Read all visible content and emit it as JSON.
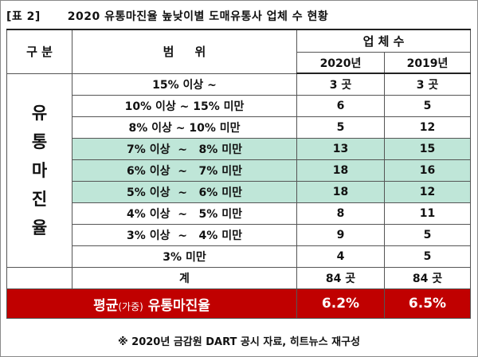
{
  "title": {
    "prefix": "[표 2]",
    "text": "2020 유통마진율 높낮이별 도매유통사 업체 수 현황"
  },
  "header": {
    "category": "구 분",
    "range": "범     위",
    "count_group": "업 체 수",
    "year_2020": "2020년",
    "year_2019": "2019년"
  },
  "category_label": [
    "유",
    "통",
    "마",
    "진",
    "율"
  ],
  "rows": [
    {
      "range": "15% 이상 ~",
      "y2020": "3 곳",
      "y2019": "3 곳",
      "highlight": false
    },
    {
      "range": "10% 이상 ~ 15% 미만",
      "y2020": "6",
      "y2019": "5",
      "highlight": false
    },
    {
      "range": "8% 이상 ~ 10% 미만",
      "y2020": "5",
      "y2019": "12",
      "highlight": false
    },
    {
      "range": "7% 이상  ~   8% 미만",
      "y2020": "13",
      "y2019": "15",
      "highlight": true
    },
    {
      "range": "6% 이상  ~   7% 미만",
      "y2020": "18",
      "y2019": "16",
      "highlight": true
    },
    {
      "range": "5% 이상  ~   6% 미만",
      "y2020": "18",
      "y2019": "12",
      "highlight": true
    },
    {
      "range": "4% 이상  ~   5% 미만",
      "y2020": "8",
      "y2019": "11",
      "highlight": false
    },
    {
      "range": "3% 이상  ~   4% 미만",
      "y2020": "9",
      "y2019": "5",
      "highlight": false
    },
    {
      "range": "3% 미만",
      "y2020": "4",
      "y2019": "5",
      "highlight": false
    }
  ],
  "total": {
    "label": "계",
    "y2020": "84 곳",
    "y2019": "84 곳"
  },
  "average": {
    "label_pre": "평균",
    "label_small": "(가중)",
    "label_post": " 유통마진율",
    "y2020": "6.2%",
    "y2019": "6.5%"
  },
  "source": "※ 2020년 금감원 DART 공시 자료, 히트뉴스 재구성",
  "colors": {
    "highlight": "#bfe6d8",
    "average_bg": "#c00000",
    "average_text": "#ffffff"
  }
}
